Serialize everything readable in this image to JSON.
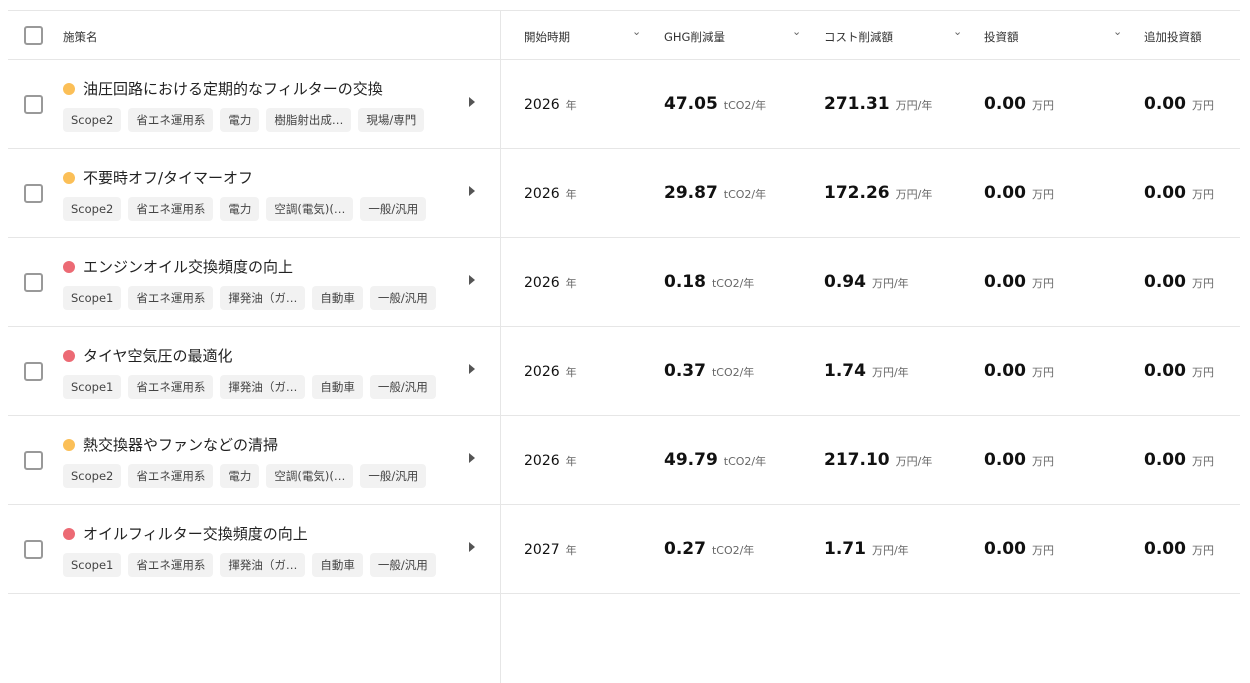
{
  "header": {
    "name": "施策名",
    "start": "開始時期",
    "ghg": "GHG削減量",
    "cost": "コスト削減額",
    "invest": "投資額",
    "extra": "追加投資額"
  },
  "colors": {
    "orange": "#fbbf57",
    "red": "#ec6a74"
  },
  "rows": [
    {
      "title": "油圧回路における定期的なフィルターの交換",
      "dot": "#fbbf57",
      "tags": [
        "Scope2",
        "省エネ運用系",
        "電力",
        "樹脂射出成…",
        "現場/専門"
      ],
      "year": "2026",
      "year_unit": "年",
      "ghg": "47.05",
      "ghg_unit": "tCO2/年",
      "cost": "271.31",
      "cost_unit": "万円/年",
      "invest": "0.00",
      "invest_unit": "万円",
      "extra": "0.00",
      "extra_unit": "万円"
    },
    {
      "title": "不要時オフ/タイマーオフ",
      "dot": "#fbbf57",
      "tags": [
        "Scope2",
        "省エネ運用系",
        "電力",
        "空調(電気)(…",
        "一般/汎用"
      ],
      "year": "2026",
      "year_unit": "年",
      "ghg": "29.87",
      "ghg_unit": "tCO2/年",
      "cost": "172.26",
      "cost_unit": "万円/年",
      "invest": "0.00",
      "invest_unit": "万円",
      "extra": "0.00",
      "extra_unit": "万円"
    },
    {
      "title": "エンジンオイル交換頻度の向上",
      "dot": "#ec6a74",
      "tags": [
        "Scope1",
        "省エネ運用系",
        "揮発油（ガ…",
        "自動車",
        "一般/汎用"
      ],
      "year": "2026",
      "year_unit": "年",
      "ghg": "0.18",
      "ghg_unit": "tCO2/年",
      "cost": "0.94",
      "cost_unit": "万円/年",
      "invest": "0.00",
      "invest_unit": "万円",
      "extra": "0.00",
      "extra_unit": "万円"
    },
    {
      "title": "タイヤ空気圧の最適化",
      "dot": "#ec6a74",
      "tags": [
        "Scope1",
        "省エネ運用系",
        "揮発油（ガ…",
        "自動車",
        "一般/汎用"
      ],
      "year": "2026",
      "year_unit": "年",
      "ghg": "0.37",
      "ghg_unit": "tCO2/年",
      "cost": "1.74",
      "cost_unit": "万円/年",
      "invest": "0.00",
      "invest_unit": "万円",
      "extra": "0.00",
      "extra_unit": "万円"
    },
    {
      "title": "熱交換器やファンなどの清掃",
      "dot": "#fbbf57",
      "tags": [
        "Scope2",
        "省エネ運用系",
        "電力",
        "空調(電気)(…",
        "一般/汎用"
      ],
      "year": "2026",
      "year_unit": "年",
      "ghg": "49.79",
      "ghg_unit": "tCO2/年",
      "cost": "217.10",
      "cost_unit": "万円/年",
      "invest": "0.00",
      "invest_unit": "万円",
      "extra": "0.00",
      "extra_unit": "万円"
    },
    {
      "title": "オイルフィルター交換頻度の向上",
      "dot": "#ec6a74",
      "tags": [
        "Scope1",
        "省エネ運用系",
        "揮発油（ガ…",
        "自動車",
        "一般/汎用"
      ],
      "year": "2027",
      "year_unit": "年",
      "ghg": "0.27",
      "ghg_unit": "tCO2/年",
      "cost": "1.71",
      "cost_unit": "万円/年",
      "invest": "0.00",
      "invest_unit": "万円",
      "extra": "0.00",
      "extra_unit": "万円"
    }
  ]
}
